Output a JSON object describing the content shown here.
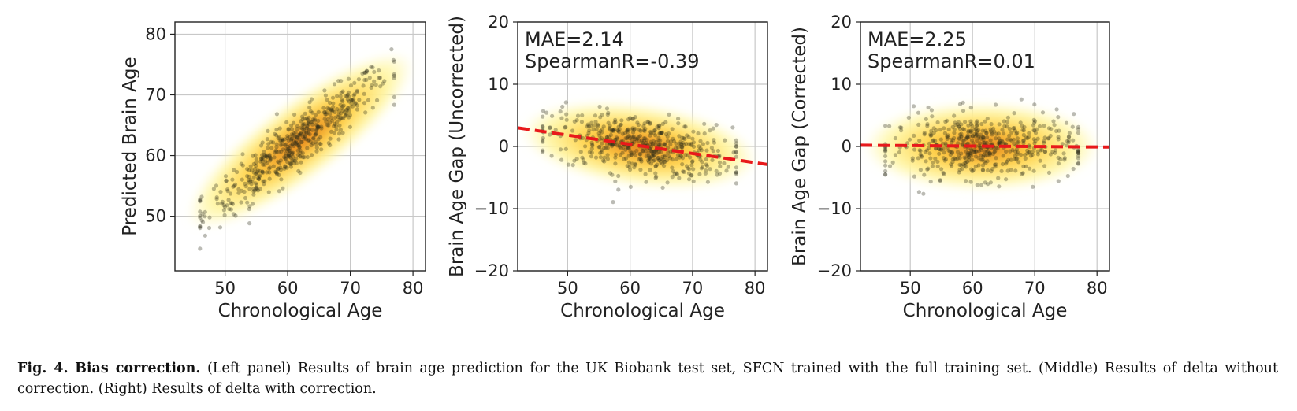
{
  "chart_data": [
    {
      "type": "scatter",
      "xlabel": "Chronological Age",
      "ylabel": "Predicted Brain Age",
      "xlim": [
        42,
        82
      ],
      "ylim": [
        41,
        82
      ],
      "xticks": [
        50,
        60,
        70,
        80
      ],
      "yticks": [
        50,
        60,
        70,
        80
      ],
      "grid": true,
      "annotation": [],
      "density": "kde-yellow-orange",
      "trend": {
        "kind": "identity-like",
        "from": [
          47,
          51
        ],
        "to": [
          77,
          74
        ]
      },
      "points": {
        "n": 520,
        "x_range": [
          46,
          77
        ],
        "spread_y": 2.2
      }
    },
    {
      "type": "scatter",
      "xlabel": "Chronological Age",
      "ylabel": "Brain Age Gap (Uncorrected)",
      "xlim": [
        42,
        82
      ],
      "ylim": [
        -20,
        20
      ],
      "xticks": [
        50,
        60,
        70,
        80
      ],
      "yticks": [
        -20,
        -10,
        0,
        10,
        20
      ],
      "grid": true,
      "annotation": [
        "MAE=2.14",
        "SpearmanR=-0.39"
      ],
      "density": "kde-yellow-orange",
      "fit_line": {
        "style": "dashed",
        "color": "#e8191b",
        "from": [
          42,
          3.0
        ],
        "to": [
          82,
          -2.9
        ]
      },
      "trend": {
        "kind": "linear",
        "from": [
          46,
          2.2
        ],
        "to": [
          77,
          -1.9
        ]
      },
      "points": {
        "n": 520,
        "x_range": [
          46,
          77
        ],
        "spread_y": 2.4
      }
    },
    {
      "type": "scatter",
      "xlabel": "Chronological Age",
      "ylabel": "Brain Age Gap (Corrected)",
      "xlim": [
        42,
        82
      ],
      "ylim": [
        -20,
        20
      ],
      "xticks": [
        50,
        60,
        70,
        80
      ],
      "yticks": [
        -20,
        -10,
        0,
        10,
        20
      ],
      "grid": true,
      "annotation": [
        "MAE=2.25",
        "SpearmanR=0.01"
      ],
      "density": "kde-yellow-orange",
      "fit_line": {
        "style": "dashed",
        "color": "#e8191b",
        "from": [
          42,
          0.2
        ],
        "to": [
          82,
          -0.1
        ]
      },
      "trend": {
        "kind": "linear",
        "from": [
          46,
          0.0
        ],
        "to": [
          77,
          0.0
        ]
      },
      "points": {
        "n": 520,
        "x_range": [
          46,
          77
        ],
        "spread_y": 2.6
      }
    }
  ],
  "caption": {
    "label": "Fig. 4.",
    "title": "Bias correction.",
    "text": "(Left panel) Results of brain age prediction for the UK Biobank test set, SFCN trained with the full training set. (Middle) Results of delta without correction. (Right) Results of delta with correction."
  },
  "colors": {
    "point": "#2b2b18",
    "density_outer": "#fff7a8",
    "density_mid": "#ffd24a",
    "density_inner": "#e37a12",
    "grid": "#c8c8c8",
    "axis": "#222222"
  }
}
